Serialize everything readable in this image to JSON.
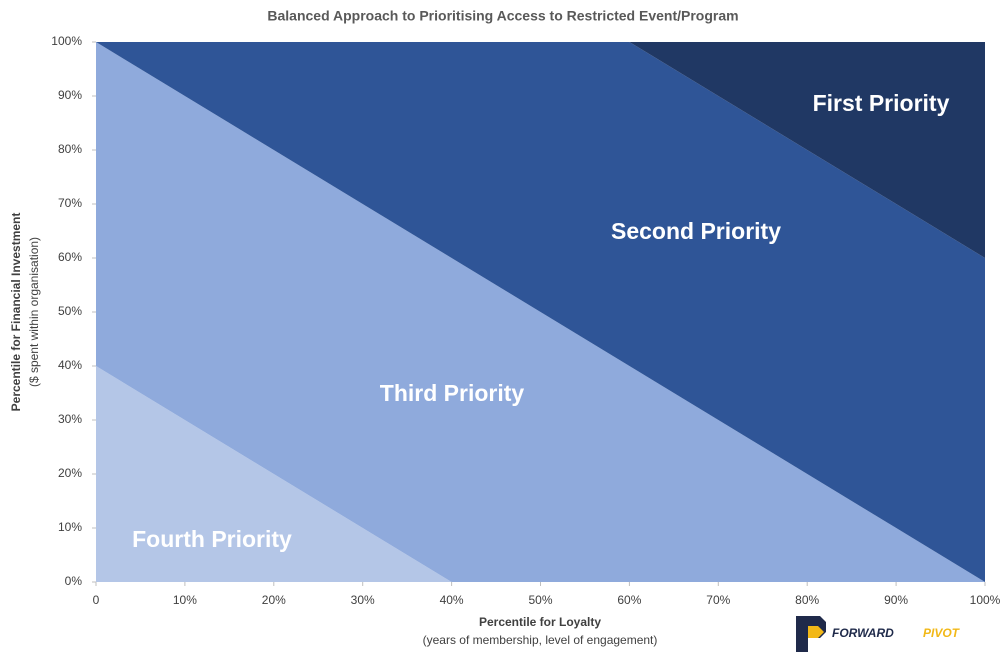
{
  "chart_data": {
    "type": "area",
    "title": "Balanced Approach to Prioritising Access to Restricted Event/Program",
    "x_label": "Percentile for Loyalty",
    "x_sublabel": "(years of membership, level of engagement)",
    "y_label": "Percentile for Financial Investment",
    "y_sublabel": "($ spent within organisation)",
    "series": [
      {
        "name": "Fourth Priority",
        "color": "#b4c6e7",
        "x": [
          0,
          40,
          100
        ],
        "values": [
          40,
          0,
          0
        ]
      },
      {
        "name": "Third Priority",
        "color": "#8faadc",
        "x": [
          0,
          100
        ],
        "values": [
          100,
          0
        ]
      },
      {
        "name": "Second Priority",
        "color": "#2f5597",
        "x": [
          0,
          60,
          100
        ],
        "values": [
          100,
          100,
          60
        ]
      },
      {
        "name": "First Priority",
        "color": "#203864",
        "x": [
          0,
          100
        ],
        "values": [
          100,
          100
        ]
      }
    ],
    "xlim": [
      0,
      100
    ],
    "ylim": [
      0,
      100
    ],
    "xticks": [
      0,
      {
        "value": 10,
        "label": "10%"
      },
      {
        "value": 20,
        "label": "20%"
      },
      {
        "value": 30,
        "label": "30%"
      },
      {
        "value": 40,
        "label": "40%"
      },
      {
        "value": 50,
        "label": "50%"
      },
      {
        "value": 60,
        "label": "60%"
      },
      {
        "value": 70,
        "label": "70%"
      },
      {
        "value": 80,
        "label": "80%"
      },
      {
        "value": 90,
        "label": "90%"
      },
      {
        "value": 100,
        "label": "100%"
      }
    ],
    "yticks": [
      {
        "value": 0,
        "label": "0%"
      },
      {
        "value": 10,
        "label": "10%"
      },
      {
        "value": 20,
        "label": "20%"
      },
      {
        "value": 30,
        "label": "30%"
      },
      {
        "value": 40,
        "label": "40%"
      },
      {
        "value": 50,
        "label": "50%"
      },
      {
        "value": 60,
        "label": "60%"
      },
      {
        "value": 70,
        "label": "70%"
      },
      {
        "value": 80,
        "label": "80%"
      },
      {
        "value": 90,
        "label": "90%"
      },
      {
        "value": 100,
        "label": "100%"
      }
    ]
  },
  "branding": {
    "word1": "FORWARD",
    "word2": "PIVOT"
  }
}
